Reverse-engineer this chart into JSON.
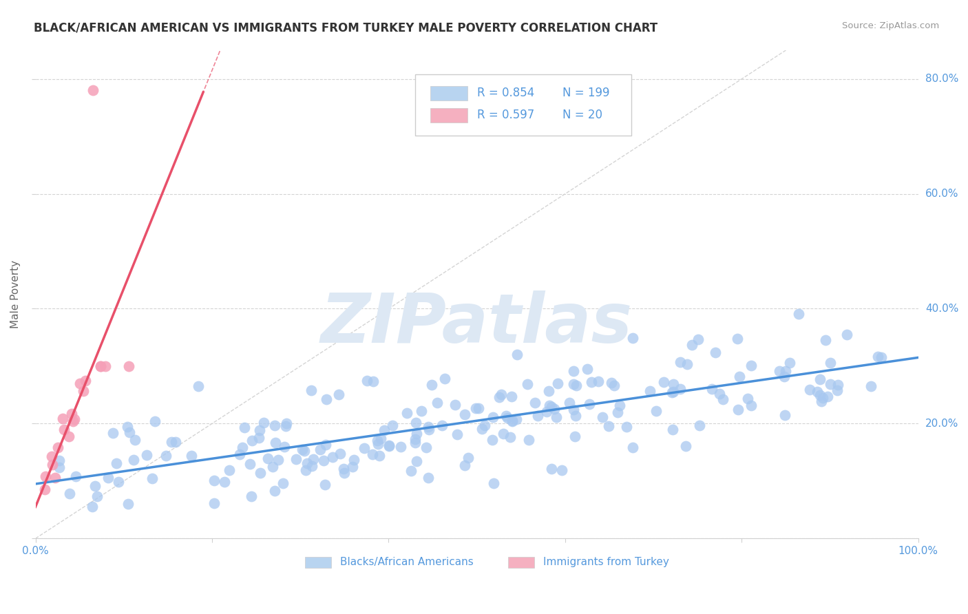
{
  "title": "BLACK/AFRICAN AMERICAN VS IMMIGRANTS FROM TURKEY MALE POVERTY CORRELATION CHART",
  "source": "Source: ZipAtlas.com",
  "ylabel": "Male Poverty",
  "watermark": "ZIPatlas",
  "legend_blue_r": "0.854",
  "legend_blue_n": "199",
  "legend_pink_r": "0.597",
  "legend_pink_n": "20",
  "legend_blue_label": "Blacks/African Americans",
  "legend_pink_label": "Immigrants from Turkey",
  "blue_scatter_color": "#a8c8f0",
  "pink_scatter_color": "#f5a0b8",
  "blue_line_color": "#4a90d9",
  "pink_line_color": "#e8506a",
  "legend_blue_fill": "#b8d4f0",
  "legend_pink_fill": "#f5b0c0",
  "axis_label_color": "#5599dd",
  "title_color": "#333333",
  "grid_color": "#d0d0d0",
  "background_color": "#ffffff",
  "xlim": [
    0.0,
    1.0
  ],
  "ylim": [
    0.0,
    0.85
  ],
  "yticks": [
    0.0,
    0.2,
    0.4,
    0.6,
    0.8
  ],
  "ytick_labels": [
    "",
    "20.0%",
    "40.0%",
    "60.0%",
    "80.0%"
  ],
  "xticks": [
    0.0,
    0.2,
    0.4,
    0.6,
    0.8,
    1.0
  ],
  "xtick_labels": [
    "0.0%",
    "",
    "",
    "",
    "",
    "100.0%"
  ],
  "blue_slope": 0.22,
  "blue_intercept": 0.095,
  "pink_slope": 3.8,
  "pink_intercept": 0.055,
  "seed_blue": 7,
  "seed_pink": 13,
  "n_blue": 199,
  "n_pink": 20
}
